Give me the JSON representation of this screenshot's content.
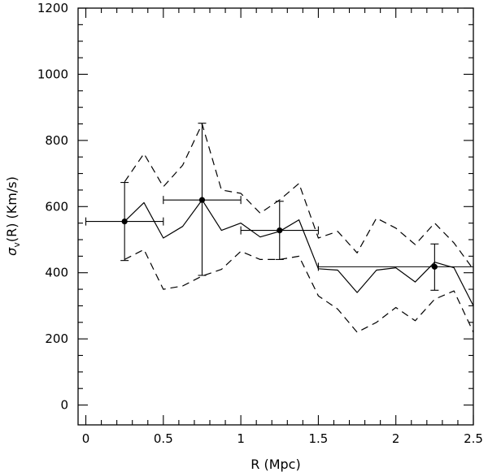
{
  "chart_data": {
    "type": "line",
    "title": "",
    "xlabel": "R (Mpc)",
    "ylabel": {
      "symbol": "σ",
      "subscript": "v",
      "rest": "(R)  (Km/s)"
    },
    "xlim": [
      -0.05,
      2.5
    ],
    "ylim": [
      -60,
      1200
    ],
    "x_ticks": [
      0,
      0.5,
      1,
      1.5,
      2,
      2.5
    ],
    "x_tick_labels": [
      "0",
      "0.5",
      "1",
      "1.5",
      "2",
      "2.5"
    ],
    "y_ticks": [
      0,
      200,
      400,
      600,
      800,
      1000,
      1200
    ],
    "y_tick_labels": [
      "0",
      "200",
      "400",
      "600",
      "800",
      "1000",
      "1200"
    ],
    "series": [
      {
        "style": "solid",
        "x": [
          0.25,
          0.375,
          0.5,
          0.625,
          0.75,
          0.875,
          1.0,
          1.125,
          1.25,
          1.375,
          1.5,
          1.625,
          1.75,
          1.875,
          2.0,
          2.125,
          2.25,
          2.375,
          2.5
        ],
        "y": [
          555,
          612,
          505,
          540,
          620,
          528,
          550,
          508,
          525,
          560,
          412,
          408,
          340,
          408,
          415,
          372,
          432,
          415,
          300
        ]
      },
      {
        "style": "dashed",
        "x": [
          0.25,
          0.375,
          0.5,
          0.625,
          0.75,
          0.875,
          1.0,
          1.125,
          1.25,
          1.375,
          1.5,
          1.625,
          1.75,
          1.875,
          2.0,
          2.125,
          2.25,
          2.375,
          2.5
        ],
        "y": [
          675,
          760,
          660,
          725,
          850,
          650,
          640,
          580,
          620,
          670,
          505,
          525,
          460,
          565,
          535,
          485,
          550,
          490,
          410
        ]
      },
      {
        "style": "dashed",
        "x": [
          0.25,
          0.375,
          0.5,
          0.625,
          0.75,
          0.875,
          1.0,
          1.125,
          1.25,
          1.375,
          1.5,
          1.625,
          1.75,
          1.875,
          2.0,
          2.125,
          2.25,
          2.375,
          2.5
        ],
        "y": [
          440,
          470,
          350,
          360,
          390,
          410,
          465,
          440,
          440,
          450,
          330,
          290,
          220,
          250,
          295,
          255,
          320,
          345,
          220
        ]
      }
    ],
    "binned_points": [
      {
        "x": 0.25,
        "y": 555,
        "x_low": 0.0,
        "x_high": 0.5,
        "y_low": 437,
        "y_high": 673
      },
      {
        "x": 0.75,
        "y": 620,
        "x_low": 0.5,
        "x_high": 1.0,
        "y_low": 392,
        "y_high": 852
      },
      {
        "x": 1.25,
        "y": 528,
        "x_low": 1.0,
        "x_high": 1.5,
        "y_low": 440,
        "y_high": 616
      },
      {
        "x": 2.25,
        "y": 418,
        "x_low": 1.5,
        "x_high": 2.5,
        "y_low": 347,
        "y_high": 487
      }
    ],
    "grid": false,
    "legend": "none"
  }
}
